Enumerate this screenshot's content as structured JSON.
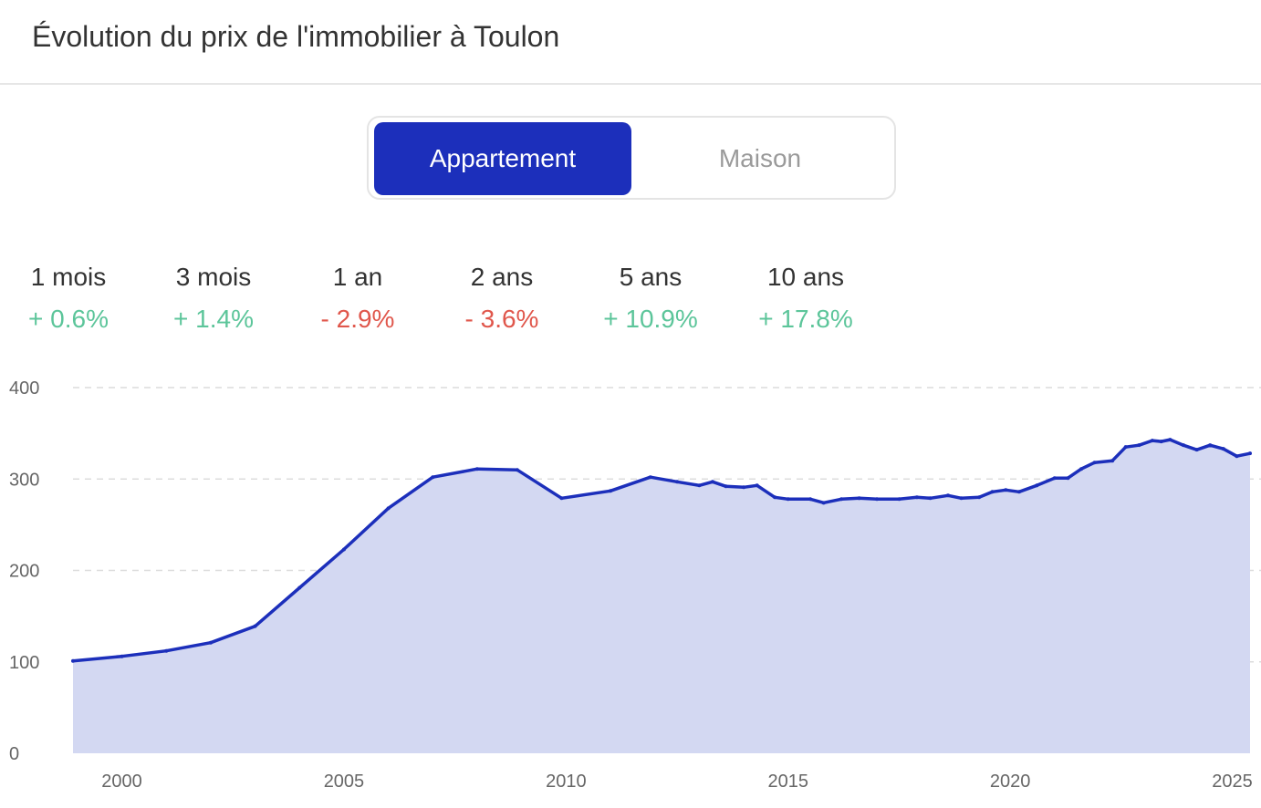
{
  "header": {
    "title": "Évolution du prix de l'immobilier à Toulon"
  },
  "toggle": {
    "options": [
      "Appartement",
      "Maison"
    ],
    "selected": "Appartement"
  },
  "colors": {
    "accent": "#1c2fbb",
    "positive": "#5cc59a",
    "negative": "#e0574c",
    "area_fill": "#d3d8f2",
    "line": "#1c2fbb"
  },
  "stats": [
    {
      "label": "1 mois",
      "value": "+ 0.6%",
      "trend": "positive"
    },
    {
      "label": "3 mois",
      "value": "+ 1.4%",
      "trend": "positive"
    },
    {
      "label": "1 an",
      "value": "- 2.9%",
      "trend": "negative"
    },
    {
      "label": "2 ans",
      "value": "- 3.6%",
      "trend": "negative"
    },
    {
      "label": "5 ans",
      "value": "+ 10.9%",
      "trend": "positive"
    },
    {
      "label": "10 ans",
      "value": "+ 17.8%",
      "trend": "positive"
    }
  ],
  "chart_data": {
    "type": "area",
    "title": "",
    "xlabel": "",
    "ylabel": "",
    "xlim": [
      1998.9,
      2025.4
    ],
    "ylim": [
      0,
      400
    ],
    "yticks": [
      0,
      100,
      200,
      300,
      400
    ],
    "xticks": [
      2000,
      2005,
      2010,
      2015,
      2020,
      2025
    ],
    "grid": true,
    "legend": "none",
    "series": [
      {
        "x": [
          1998.9,
          2000,
          2001,
          2002,
          2003,
          2004,
          2005,
          2006,
          2007,
          2008,
          2008.9,
          2009.9,
          2011,
          2011.9,
          2012.5,
          2013,
          2013.3,
          2013.6,
          2014,
          2014.3,
          2014.7,
          2015,
          2015.5,
          2015.8,
          2016.2,
          2016.6,
          2017,
          2017.5,
          2017.9,
          2018.2,
          2018.6,
          2018.9,
          2019.3,
          2019.6,
          2019.9,
          2020.2,
          2020.6,
          2021,
          2021.3,
          2021.6,
          2021.9,
          2022.3,
          2022.6,
          2022.9,
          2023.2,
          2023.4,
          2023.6,
          2023.9,
          2024.2,
          2024.5,
          2024.8,
          2025.1,
          2025.4
        ],
        "values": [
          101,
          106,
          112,
          121,
          139,
          181,
          223,
          268,
          302,
          311,
          310,
          279,
          287,
          302,
          297,
          293,
          297,
          292,
          291,
          293,
          280,
          278,
          278,
          274,
          278,
          279,
          278,
          278,
          280,
          279,
          282,
          279,
          280,
          286,
          288,
          286,
          293,
          301,
          301,
          311,
          318,
          320,
          335,
          337,
          342,
          341,
          343,
          337,
          332,
          337,
          333,
          325,
          328
        ]
      }
    ]
  }
}
